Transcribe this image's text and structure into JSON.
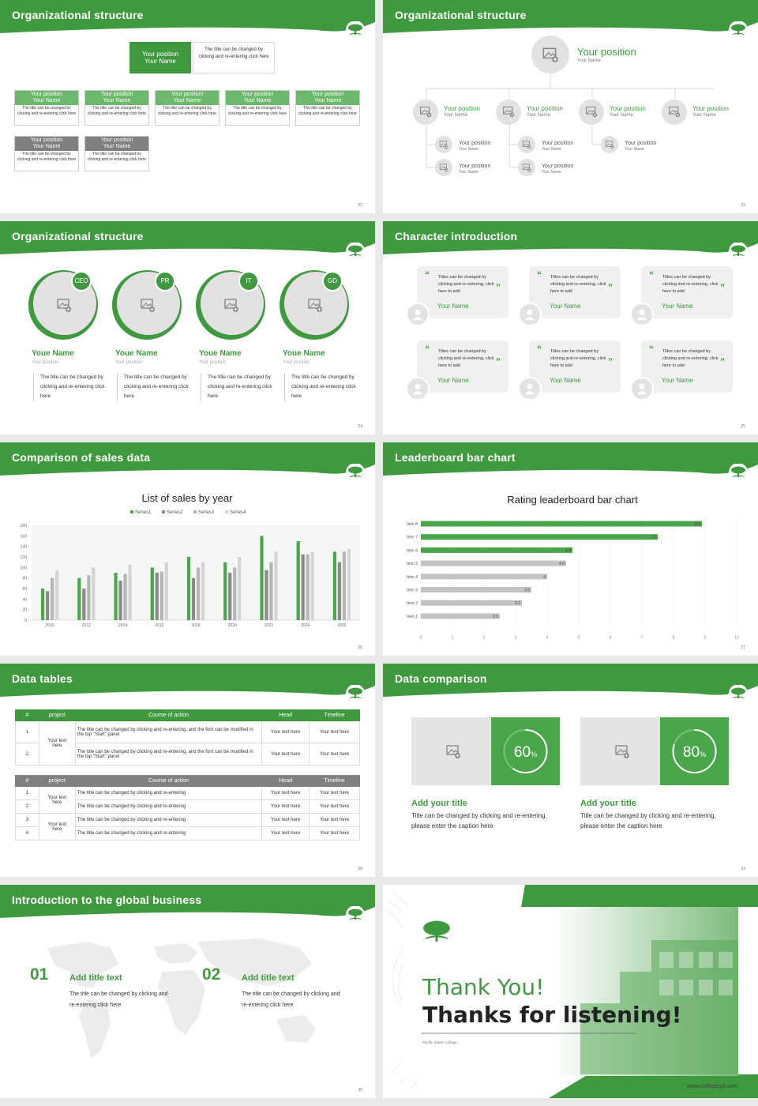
{
  "slides": {
    "s22": {
      "title": "Organizational structure",
      "page": "22",
      "top": {
        "position": "Your position",
        "name": "Your Name",
        "note": "The title can be changed by clicking and re-entering click here"
      },
      "cards": [
        {
          "position": "Your position",
          "name": "Your Name",
          "text": "The title can be changed by clicking and re-entering click here",
          "color": "#6cb86c"
        },
        {
          "position": "Your position",
          "name": "Your Name",
          "text": "The title can be changed by clicking and re-entering click here",
          "color": "#6cb86c"
        },
        {
          "position": "Your position",
          "name": "Your Name",
          "text": "The title can be changed by clicking and re-entering click here",
          "color": "#6cb86c"
        },
        {
          "position": "Your position",
          "name": "Your Name",
          "text": "The title can be changed by clicking and re-entering click here",
          "color": "#6cb86c"
        },
        {
          "position": "Your position",
          "name": "Your Name",
          "text": "The title can be changed by clicking and re-entering click here",
          "color": "#6cb86c"
        },
        {
          "position": "Your position",
          "name": "Your Name",
          "text": "The title can be changed by clicking and re-entering click here",
          "color": "#808080"
        },
        {
          "position": "Your position",
          "name": "Your Name",
          "text": "The title can be changed by clicking and re-entering click here",
          "color": "#808080"
        }
      ]
    },
    "s23": {
      "title": "Organizational structure",
      "page": "23",
      "top": {
        "position": "Your position",
        "name": "Your Name"
      },
      "level2": [
        {
          "position": "Your position",
          "name": "Your Name"
        },
        {
          "position": "Your position",
          "name": "Your Name"
        },
        {
          "position": "Your position",
          "name": "Your Name"
        },
        {
          "position": "Your position",
          "name": "Your Name"
        }
      ],
      "level3": [
        {
          "position": "Your position",
          "name": "Your Name"
        },
        {
          "position": "Your position",
          "name": "Your Name"
        },
        {
          "position": "Your position",
          "name": "Your Name"
        },
        {
          "position": "Your position",
          "name": "Your Name"
        },
        {
          "position": "Your position",
          "name": "Your Name"
        }
      ]
    },
    "s24": {
      "title": "Organizational structure",
      "page": "24",
      "people": [
        {
          "badge": "CEO",
          "name": "Youe Name",
          "position": "Your position",
          "desc": "The title can be changed by clicking and re-entering click here"
        },
        {
          "badge": "PR",
          "name": "Youe Name",
          "position": "Your position",
          "desc": "The title can be changed by clicking and re-entering click here"
        },
        {
          "badge": "IT",
          "name": "Youe Name",
          "position": "Your position",
          "desc": "The title can be changed by clicking and re-entering click here"
        },
        {
          "badge": "GD",
          "name": "Youe Name",
          "position": "Your position",
          "desc": "The title can be changed by clicking and re-entering click here"
        }
      ]
    },
    "s25": {
      "title": "Character introduction",
      "page": "25",
      "quotes": [
        {
          "text": "Titles can be changed by clicking and re-entering, click here to add",
          "name": "Your Name"
        },
        {
          "text": "Titles can be changed by clicking and re-entering, click here to add",
          "name": "Your Name"
        },
        {
          "text": "Titles can be changed by clicking and re-entering, click here to add",
          "name": "Your Name"
        },
        {
          "text": "Titles can be changed by clicking and re-entering, click here to add",
          "name": "Your Name"
        },
        {
          "text": "Titles can be changed by clicking and re-entering, click here to add",
          "name": "Your Name"
        },
        {
          "text": "Titles can be changed by clicking and re-entering, click here to add",
          "name": "Your Name"
        }
      ]
    },
    "s26": {
      "title": "Comparison of sales data",
      "page": "26"
    },
    "s27": {
      "title": "Leaderboard bar chart",
      "page": "27"
    },
    "s28": {
      "title": "Data tables",
      "page": "28",
      "table1": {
        "headers": [
          "#",
          "project",
          "Course of action",
          "Head",
          "Timeline"
        ],
        "project": "Your text here",
        "rows": [
          {
            "num": "1",
            "action": "The title can be changed by clicking and re-entering, and the font can be modified in the top \"Start\" panel",
            "head": "Your text here",
            "timeline": "Your text here"
          },
          {
            "num": "2",
            "action": "The title can be changed by clicking and re-entering, and the font can be modified in the top \"Start\" panel",
            "head": "Your text here",
            "timeline": "Your text here"
          }
        ]
      },
      "table2": {
        "headers": [
          "#",
          "project",
          "Course of action",
          "Head",
          "Timeline"
        ],
        "projects": [
          "Your text here",
          "Your text here"
        ],
        "rows": [
          {
            "num": "1",
            "action": "The title can be changed by clicking and re-entering",
            "head": "Your text here",
            "timeline": "Your text here"
          },
          {
            "num": "2",
            "action": "The title can be changed by clicking and re-entering",
            "head": "Your text here",
            "timeline": "Your text here"
          },
          {
            "num": "3",
            "action": "The title can be changed by clicking and re-entering",
            "head": "Your text here",
            "timeline": "Your text here"
          },
          {
            "num": "4",
            "action": "The title can be changed by clicking and re-entering",
            "head": "Your text here",
            "timeline": "Your text here"
          }
        ]
      }
    },
    "s29": {
      "title": "Data comparison",
      "page": "29",
      "items": [
        {
          "value": 60,
          "label": "60",
          "unit": "%",
          "title": "Add your title",
          "desc": "Title can be changed by clicking and re-entering, please enter the caption here"
        },
        {
          "value": 80,
          "label": "80",
          "unit": "%",
          "title": "Add your title",
          "desc": "Title can be changed by clicking and re-entering, please enter the caption here"
        }
      ]
    },
    "s30": {
      "title": "Introduction to the global business",
      "page": "30",
      "items": [
        {
          "num": "01",
          "title": "Add title text",
          "desc": "The title can be changed by clicking and re-entering click here"
        },
        {
          "num": "02",
          "title": "Add title text",
          "desc": "The title can be changed by clicking and re-entering click here"
        }
      ]
    },
    "s31": {
      "line1": "Thank You!",
      "line2": "Thanks for listening!",
      "college": "Pacific States College",
      "url": "www.collegeppt.com"
    }
  },
  "colors": {
    "green": "#3f9a3f",
    "gray": "#808080",
    "light_gray": "#bdbdbd"
  },
  "chart_data": [
    {
      "type": "bar",
      "title": "List of sales by year",
      "categories": [
        "2010",
        "2012",
        "2014",
        "2016",
        "2018",
        "2020",
        "2022",
        "2024",
        "2026"
      ],
      "series": [
        {
          "name": "Series1",
          "color": "#4aa64a",
          "values": [
            60,
            80,
            90,
            100,
            120,
            110,
            160,
            150,
            130
          ]
        },
        {
          "name": "Series2",
          "color": "#8a8a8a",
          "values": [
            55,
            60,
            75,
            90,
            80,
            90,
            95,
            125,
            110
          ]
        },
        {
          "name": "Series3",
          "color": "#b5b5b5",
          "values": [
            80,
            85,
            88,
            92,
            100,
            100,
            110,
            125,
            130
          ]
        },
        {
          "name": "Series4",
          "color": "#d4d4d4",
          "values": [
            95,
            100,
            105,
            110,
            110,
            120,
            130,
            130,
            135
          ]
        }
      ],
      "yticks": [
        "0",
        "20",
        "40",
        "60",
        "80",
        "100",
        "120",
        "140",
        "160",
        "180"
      ],
      "ylim": [
        0,
        180
      ],
      "legend": "top"
    },
    {
      "type": "bar",
      "orientation": "horizontal",
      "title": "Rating leaderboard bar chart",
      "categories": [
        "Item 8",
        "Item 7",
        "Item 6",
        "Item 5",
        "Item 4",
        "Item 3",
        "Item 2",
        "Item 1"
      ],
      "values": [
        8.9,
        7.5,
        4.8,
        4.6,
        4,
        3.5,
        3.2,
        2.5
      ],
      "value_labels": [
        "8.9",
        "7.5",
        "4.8",
        "4.6",
        "4",
        "3.5",
        "3.2",
        "2.5"
      ],
      "highlight_count": 3,
      "xticks": [
        "0",
        "1",
        "2",
        "3",
        "4",
        "5",
        "6",
        "7",
        "8",
        "9",
        "10"
      ],
      "xlim": [
        0,
        10
      ]
    }
  ]
}
